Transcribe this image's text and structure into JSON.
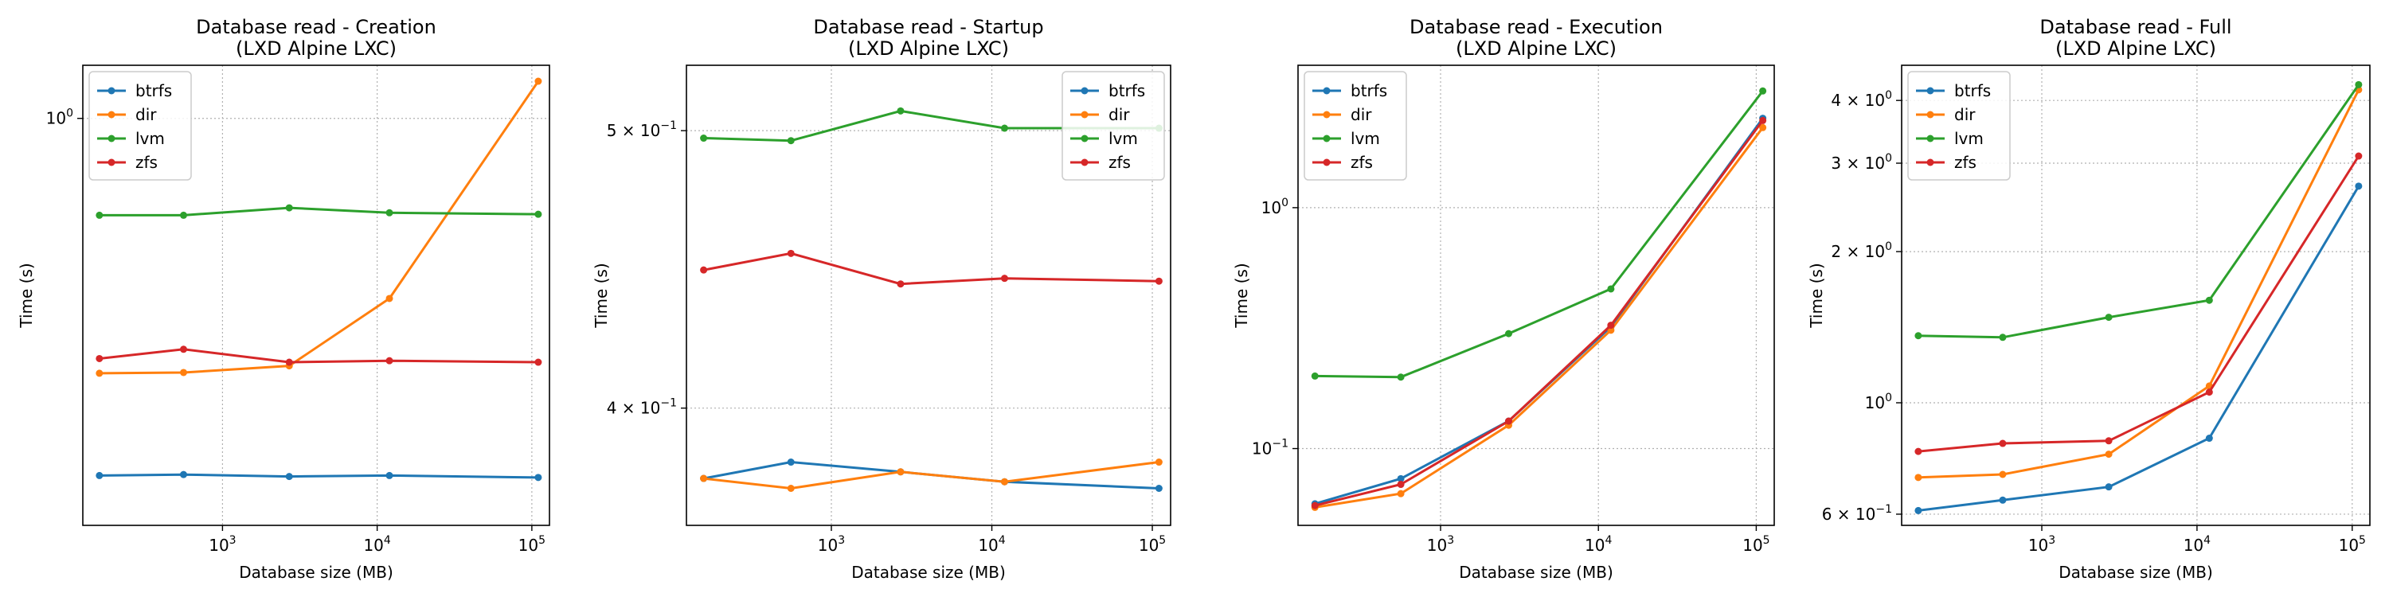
{
  "colors": {
    "btrfs": "#1f77b4",
    "dir": "#ff7f0e",
    "lvm": "#2ca02c",
    "zfs": "#d62728"
  },
  "chart_data": [
    {
      "type": "line",
      "title": "Database read - Creation\n(LXD Alpine LXC)",
      "xlabel": "Database size (MB)",
      "ylabel": "Time (s)",
      "xscale": "log",
      "yscale": "log",
      "grid": true,
      "legend_position": "top-left",
      "xlim": [
        125,
        130000
      ],
      "ylim": [
        0.352,
        1.146
      ],
      "xticks": [
        {
          "value": 1000,
          "base": "10",
          "exp": "3"
        },
        {
          "value": 10000,
          "base": "10",
          "exp": "4"
        },
        {
          "value": 100000,
          "base": "10",
          "exp": "5"
        }
      ],
      "yticks": [
        {
          "value": 1.0,
          "label": "10",
          "exp": "0"
        }
      ],
      "x": [
        160,
        560,
        2700,
        12000,
        110000
      ],
      "series": [
        {
          "name": "btrfs",
          "values": [
            0.4,
            0.401,
            0.399,
            0.4,
            0.398
          ]
        },
        {
          "name": "dir",
          "values": [
            0.52,
            0.521,
            0.53,
            0.63,
            1.1
          ]
        },
        {
          "name": "lvm",
          "values": [
            0.78,
            0.78,
            0.795,
            0.785,
            0.782
          ]
        },
        {
          "name": "zfs",
          "values": [
            0.54,
            0.553,
            0.535,
            0.537,
            0.535
          ]
        }
      ]
    },
    {
      "type": "line",
      "title": "Database read - Startup\n(LXD Alpine LXC)",
      "xlabel": "Database size (MB)",
      "ylabel": "Time (s)",
      "xscale": "log",
      "yscale": "log",
      "grid": true,
      "legend_position": "top-right",
      "xlim": [
        125,
        130000
      ],
      "ylim": [
        0.364,
        0.527
      ],
      "xticks": [
        {
          "value": 1000,
          "base": "10",
          "exp": "3"
        },
        {
          "value": 10000,
          "base": "10",
          "exp": "4"
        },
        {
          "value": 100000,
          "base": "10",
          "exp": "5"
        }
      ],
      "yticks": [
        {
          "value": 0.4,
          "label": "4 × 10",
          "exp": "−1"
        },
        {
          "value": 0.5,
          "label": "5 × 10",
          "exp": "−1"
        }
      ],
      "x": [
        160,
        560,
        2700,
        12000,
        110000
      ],
      "series": [
        {
          "name": "btrfs",
          "values": [
            0.378,
            0.383,
            0.38,
            0.377,
            0.375
          ]
        },
        {
          "name": "dir",
          "values": [
            0.378,
            0.375,
            0.38,
            0.377,
            0.383
          ]
        },
        {
          "name": "lvm",
          "values": [
            0.497,
            0.496,
            0.508,
            0.501,
            0.501
          ]
        },
        {
          "name": "zfs",
          "values": [
            0.447,
            0.453,
            0.442,
            0.444,
            0.443
          ]
        }
      ]
    },
    {
      "type": "line",
      "title": "Database read - Execution\n(LXD Alpine LXC)",
      "xlabel": "Database size (MB)",
      "ylabel": "Time (s)",
      "xscale": "log",
      "yscale": "log",
      "grid": true,
      "legend_position": "top-left",
      "xlim": [
        125,
        130000
      ],
      "ylim": [
        0.048,
        3.9
      ],
      "xticks": [
        {
          "value": 1000,
          "base": "10",
          "exp": "3"
        },
        {
          "value": 10000,
          "base": "10",
          "exp": "4"
        },
        {
          "value": 100000,
          "base": "10",
          "exp": "5"
        }
      ],
      "yticks": [
        {
          "value": 0.1,
          "label": "10",
          "exp": "−1"
        },
        {
          "value": 1.0,
          "label": "10",
          "exp": "0"
        }
      ],
      "x": [
        160,
        560,
        2700,
        12000,
        110000
      ],
      "series": [
        {
          "name": "btrfs",
          "values": [
            0.059,
            0.075,
            0.13,
            0.32,
            2.35
          ]
        },
        {
          "name": "dir",
          "values": [
            0.057,
            0.065,
            0.125,
            0.31,
            2.15
          ]
        },
        {
          "name": "lvm",
          "values": [
            0.2,
            0.198,
            0.3,
            0.46,
            3.05
          ]
        },
        {
          "name": "zfs",
          "values": [
            0.058,
            0.071,
            0.13,
            0.325,
            2.3
          ]
        }
      ]
    },
    {
      "type": "line",
      "title": "Database read - Full\n(LXD Alpine LXC)",
      "xlabel": "Database size (MB)",
      "ylabel": "Time (s)",
      "xscale": "log",
      "yscale": "log",
      "grid": true,
      "legend_position": "top-left",
      "xlim": [
        125,
        130000
      ],
      "ylim": [
        0.57,
        4.7
      ],
      "xticks": [
        {
          "value": 1000,
          "base": "10",
          "exp": "3"
        },
        {
          "value": 10000,
          "base": "10",
          "exp": "4"
        },
        {
          "value": 100000,
          "base": "10",
          "exp": "5"
        }
      ],
      "yticks": [
        {
          "value": 0.6,
          "label": "6 × 10",
          "exp": "−1"
        },
        {
          "value": 1.0,
          "label": "10",
          "exp": "0"
        },
        {
          "value": 2.0,
          "label": "2 × 10",
          "exp": "0"
        },
        {
          "value": 3.0,
          "label": "3 × 10",
          "exp": "0"
        },
        {
          "value": 4.0,
          "label": "4 × 10",
          "exp": "0"
        }
      ],
      "x": [
        160,
        560,
        2700,
        12000,
        110000
      ],
      "series": [
        {
          "name": "btrfs",
          "values": [
            0.61,
            0.64,
            0.68,
            0.85,
            2.7
          ]
        },
        {
          "name": "dir",
          "values": [
            0.71,
            0.72,
            0.79,
            1.08,
            4.2
          ]
        },
        {
          "name": "lvm",
          "values": [
            1.36,
            1.35,
            1.48,
            1.6,
            4.3
          ]
        },
        {
          "name": "zfs",
          "values": [
            0.8,
            0.83,
            0.84,
            1.05,
            3.1
          ]
        }
      ]
    }
  ]
}
